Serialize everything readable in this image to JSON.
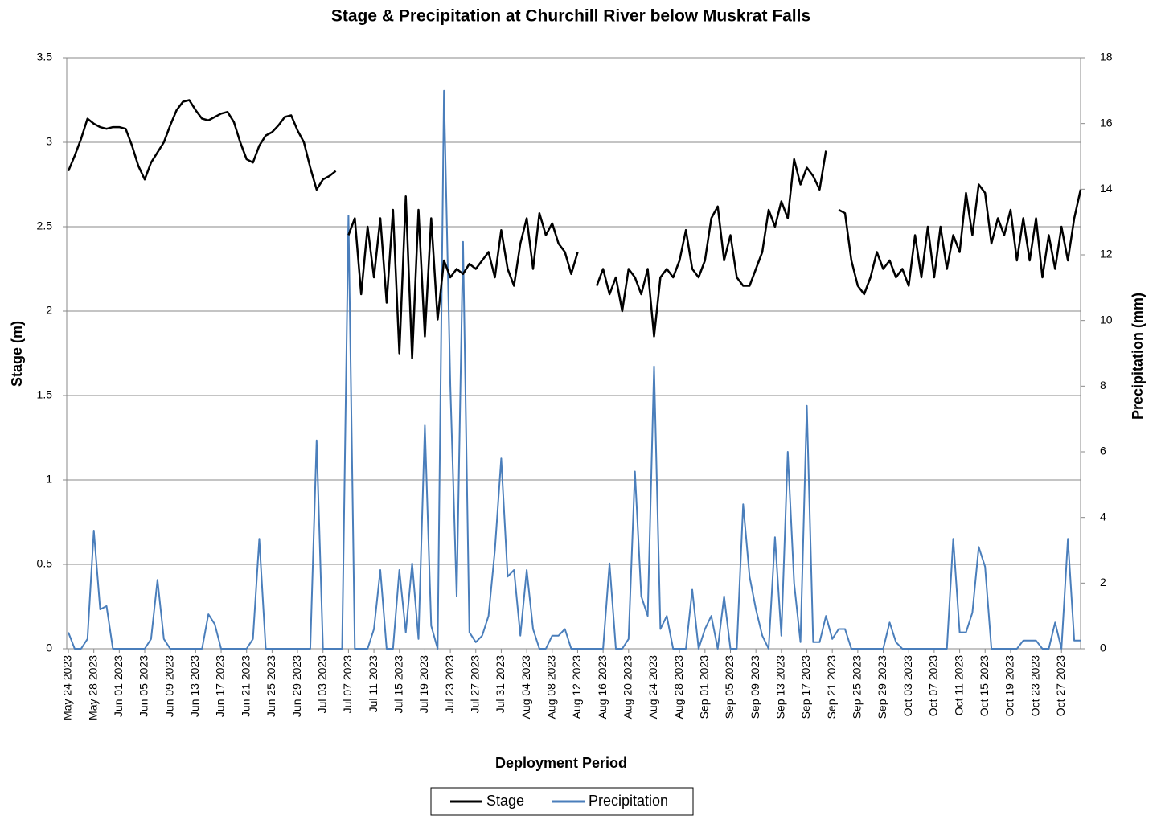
{
  "chart_data": {
    "type": "line",
    "title": "Stage & Precipitation at Churchill River below Muskrat Falls",
    "x_label": "Deployment Period",
    "y_label": "Stage (m)",
    "y2_label": "Precipitation (mm)",
    "x": [
      "2023-05-24",
      "2023-05-25",
      "2023-05-26",
      "2023-05-27",
      "2023-05-28",
      "2023-05-29",
      "2023-05-30",
      "2023-05-31",
      "2023-06-01",
      "2023-06-02",
      "2023-06-03",
      "2023-06-04",
      "2023-06-05",
      "2023-06-06",
      "2023-06-07",
      "2023-06-08",
      "2023-06-09",
      "2023-06-10",
      "2023-06-11",
      "2023-06-12",
      "2023-06-13",
      "2023-06-14",
      "2023-06-15",
      "2023-06-16",
      "2023-06-17",
      "2023-06-18",
      "2023-06-19",
      "2023-06-20",
      "2023-06-21",
      "2023-06-22",
      "2023-06-23",
      "2023-06-24",
      "2023-06-25",
      "2023-06-26",
      "2023-06-27",
      "2023-06-28",
      "2023-06-29",
      "2023-06-30",
      "2023-07-01",
      "2023-07-02",
      "2023-07-03",
      "2023-07-04",
      "2023-07-05",
      "2023-07-06",
      "2023-07-07",
      "2023-07-08",
      "2023-07-09",
      "2023-07-10",
      "2023-07-11",
      "2023-07-12",
      "2023-07-13",
      "2023-07-14",
      "2023-07-15",
      "2023-07-16",
      "2023-07-17",
      "2023-07-18",
      "2023-07-19",
      "2023-07-20",
      "2023-07-21",
      "2023-07-22",
      "2023-07-23",
      "2023-07-24",
      "2023-07-25",
      "2023-07-26",
      "2023-07-27",
      "2023-07-28",
      "2023-07-29",
      "2023-07-30",
      "2023-07-31",
      "2023-08-01",
      "2023-08-02",
      "2023-08-03",
      "2023-08-04",
      "2023-08-05",
      "2023-08-06",
      "2023-08-07",
      "2023-08-08",
      "2023-08-09",
      "2023-08-10",
      "2023-08-11",
      "2023-08-12",
      "2023-08-13",
      "2023-08-14",
      "2023-08-15",
      "2023-08-16",
      "2023-08-17",
      "2023-08-18",
      "2023-08-19",
      "2023-08-20",
      "2023-08-21",
      "2023-08-22",
      "2023-08-23",
      "2023-08-24",
      "2023-08-25",
      "2023-08-26",
      "2023-08-27",
      "2023-08-28",
      "2023-08-29",
      "2023-08-30",
      "2023-08-31",
      "2023-09-01",
      "2023-09-02",
      "2023-09-03",
      "2023-09-04",
      "2023-09-05",
      "2023-09-06",
      "2023-09-07",
      "2023-09-08",
      "2023-09-09",
      "2023-09-10",
      "2023-09-11",
      "2023-09-12",
      "2023-09-13",
      "2023-09-14",
      "2023-09-15",
      "2023-09-16",
      "2023-09-17",
      "2023-09-18",
      "2023-09-19",
      "2023-09-20",
      "2023-09-21",
      "2023-09-22",
      "2023-09-23",
      "2023-09-24",
      "2023-09-25",
      "2023-09-26",
      "2023-09-27",
      "2023-09-28",
      "2023-09-29",
      "2023-09-30",
      "2023-10-01",
      "2023-10-02",
      "2023-10-03",
      "2023-10-04",
      "2023-10-05",
      "2023-10-06",
      "2023-10-07",
      "2023-10-08",
      "2023-10-09",
      "2023-10-10",
      "2023-10-11",
      "2023-10-12",
      "2023-10-13",
      "2023-10-14",
      "2023-10-15",
      "2023-10-16",
      "2023-10-17",
      "2023-10-18",
      "2023-10-19",
      "2023-10-20",
      "2023-10-21",
      "2023-10-22",
      "2023-10-23",
      "2023-10-24",
      "2023-10-25",
      "2023-10-26",
      "2023-10-27",
      "2023-10-28",
      "2023-10-29",
      "2023-10-30"
    ],
    "series": [
      {
        "name": "Stage",
        "color": "#000000",
        "axis": "y",
        "values": [
          2.83,
          2.92,
          3.02,
          3.14,
          3.11,
          3.09,
          3.08,
          3.09,
          3.09,
          3.08,
          2.98,
          2.86,
          2.78,
          2.88,
          2.94,
          3.0,
          3.1,
          3.19,
          3.24,
          3.25,
          3.19,
          3.14,
          3.13,
          3.15,
          3.17,
          3.18,
          3.12,
          3.0,
          2.9,
          2.88,
          2.98,
          3.04,
          3.06,
          3.1,
          3.15,
          3.16,
          3.07,
          3.0,
          2.85,
          2.72,
          2.78,
          2.8,
          2.83,
          null,
          2.45,
          2.55,
          2.1,
          2.5,
          2.2,
          2.55,
          2.05,
          2.6,
          1.75,
          2.68,
          1.72,
          2.6,
          1.85,
          2.55,
          1.95,
          2.3,
          2.2,
          2.25,
          2.22,
          2.28,
          2.25,
          2.3,
          2.35,
          2.2,
          2.48,
          2.25,
          2.15,
          2.4,
          2.55,
          2.25,
          2.58,
          2.45,
          2.52,
          2.4,
          2.35,
          2.22,
          2.35,
          null,
          null,
          2.15,
          2.25,
          2.1,
          2.2,
          2.0,
          2.25,
          2.2,
          2.1,
          2.25,
          1.85,
          2.2,
          2.25,
          2.2,
          2.3,
          2.48,
          2.25,
          2.2,
          2.3,
          2.55,
          2.62,
          2.3,
          2.45,
          2.2,
          2.15,
          2.15,
          2.25,
          2.35,
          2.6,
          2.5,
          2.65,
          2.55,
          2.9,
          2.75,
          2.85,
          2.8,
          2.72,
          2.95,
          null,
          2.6,
          2.58,
          2.3,
          2.15,
          2.1,
          2.2,
          2.35,
          2.25,
          2.3,
          2.2,
          2.25,
          2.15,
          2.45,
          2.2,
          2.5,
          2.2,
          2.5,
          2.25,
          2.45,
          2.35,
          2.7,
          2.45,
          2.75,
          2.7,
          2.4,
          2.55,
          2.45,
          2.6,
          2.3,
          2.55,
          2.3,
          2.55,
          2.2,
          2.45,
          2.25,
          2.5,
          2.3,
          2.55,
          2.72
        ]
      },
      {
        "name": "Precipitation",
        "color": "#4a7ebb",
        "axis": "y2",
        "values": [
          0.5,
          0,
          0,
          0.3,
          3.6,
          1.2,
          1.3,
          0,
          0,
          0,
          0,
          0,
          0,
          0.3,
          2.1,
          0.3,
          0,
          0,
          0,
          0,
          0,
          0,
          1.05,
          0.75,
          0,
          0,
          0,
          0,
          0,
          0.3,
          3.35,
          0,
          0,
          0,
          0,
          0,
          0,
          0,
          0,
          6.35,
          0,
          0,
          0,
          0,
          13.2,
          0,
          0,
          0,
          0.6,
          2.4,
          0,
          0,
          2.4,
          0.5,
          2.6,
          0.3,
          6.8,
          0.7,
          0,
          17,
          8,
          1.6,
          12.4,
          0.5,
          0.2,
          0.4,
          1.0,
          3.0,
          5.8,
          2.2,
          2.4,
          0.4,
          2.4,
          0.6,
          0,
          0,
          0.4,
          0.4,
          0.6,
          0,
          0,
          0,
          0,
          0,
          0,
          2.6,
          0,
          0,
          0.3,
          5.4,
          1.6,
          1.0,
          8.6,
          0.6,
          1.0,
          0,
          0,
          0,
          1.8,
          0,
          0.6,
          1.0,
          0,
          1.6,
          0,
          0,
          4.4,
          2.2,
          1.2,
          0.4,
          0,
          3.4,
          0.4,
          6.0,
          2.0,
          0.2,
          7.4,
          0.2,
          0.2,
          1.0,
          0.3,
          0.6,
          0.6,
          0,
          0,
          0,
          0,
          0,
          0,
          0.8,
          0.2,
          0,
          0,
          0,
          0,
          0,
          0,
          0,
          0,
          3.35,
          0.5,
          0.5,
          1.1,
          3.1,
          2.5,
          0,
          0,
          0,
          0,
          0,
          0.25,
          0.25,
          0.25,
          0,
          0,
          0.8,
          0,
          3.35,
          0.25,
          0.25
        ]
      }
    ],
    "xlim": [
      "2023-05-24",
      "2023-10-30"
    ],
    "xticks": [
      {
        "value": "2023-05-24",
        "label": "May 24 2023"
      },
      {
        "value": "2023-05-28",
        "label": "May 28 2023"
      },
      {
        "value": "2023-06-01",
        "label": "Jun 01 2023"
      },
      {
        "value": "2023-06-05",
        "label": "Jun 05 2023"
      },
      {
        "value": "2023-06-09",
        "label": "Jun 09 2023"
      },
      {
        "value": "2023-06-13",
        "label": "Jun 13 2023"
      },
      {
        "value": "2023-06-17",
        "label": "Jun 17 2023"
      },
      {
        "value": "2023-06-21",
        "label": "Jun 21 2023"
      },
      {
        "value": "2023-06-25",
        "label": "Jun 25 2023"
      },
      {
        "value": "2023-06-29",
        "label": "Jun 29 2023"
      },
      {
        "value": "2023-07-03",
        "label": "Jul 03 2023"
      },
      {
        "value": "2023-07-07",
        "label": "Jul 07 2023"
      },
      {
        "value": "2023-07-11",
        "label": "Jul 11 2023"
      },
      {
        "value": "2023-07-15",
        "label": "Jul 15 2023"
      },
      {
        "value": "2023-07-19",
        "label": "Jul 19 2023"
      },
      {
        "value": "2023-07-23",
        "label": "Jul 23 2023"
      },
      {
        "value": "2023-07-27",
        "label": "Jul 27 2023"
      },
      {
        "value": "2023-07-31",
        "label": "Jul 31 2023"
      },
      {
        "value": "2023-08-04",
        "label": "Aug 04 2023"
      },
      {
        "value": "2023-08-08",
        "label": "Aug 08 2023"
      },
      {
        "value": "2023-08-12",
        "label": "Aug 12 2023"
      },
      {
        "value": "2023-08-16",
        "label": "Aug 16 2023"
      },
      {
        "value": "2023-08-20",
        "label": "Aug 20 2023"
      },
      {
        "value": "2023-08-24",
        "label": "Aug 24 2023"
      },
      {
        "value": "2023-08-28",
        "label": "Aug 28 2023"
      },
      {
        "value": "2023-09-01",
        "label": "Sep 01 2023"
      },
      {
        "value": "2023-09-05",
        "label": "Sep 05 2023"
      },
      {
        "value": "2023-09-09",
        "label": "Sep 09 2023"
      },
      {
        "value": "2023-09-13",
        "label": "Sep 13 2023"
      },
      {
        "value": "2023-09-17",
        "label": "Sep 17 2023"
      },
      {
        "value": "2023-09-21",
        "label": "Sep 21 2023"
      },
      {
        "value": "2023-09-25",
        "label": "Sep 25 2023"
      },
      {
        "value": "2023-09-29",
        "label": "Sep 29 2023"
      },
      {
        "value": "2023-10-03",
        "label": "Oct 03 2023"
      },
      {
        "value": "2023-10-07",
        "label": "Oct 07 2023"
      },
      {
        "value": "2023-10-11",
        "label": "Oct 11 2023"
      },
      {
        "value": "2023-10-15",
        "label": "Oct 15 2023"
      },
      {
        "value": "2023-10-19",
        "label": "Oct 19 2023"
      },
      {
        "value": "2023-10-23",
        "label": "Oct 23 2023"
      },
      {
        "value": "2023-10-27",
        "label": "Oct 27 2023"
      }
    ],
    "ylim": [
      0,
      3.5
    ],
    "yticks": [
      0,
      0.5,
      1,
      1.5,
      2,
      2.5,
      3,
      3.5
    ],
    "y2lim": [
      0,
      18
    ],
    "y2ticks": [
      0,
      2,
      4,
      6,
      8,
      10,
      12,
      14,
      16,
      18
    ],
    "grid": true,
    "legend": "bottom"
  }
}
